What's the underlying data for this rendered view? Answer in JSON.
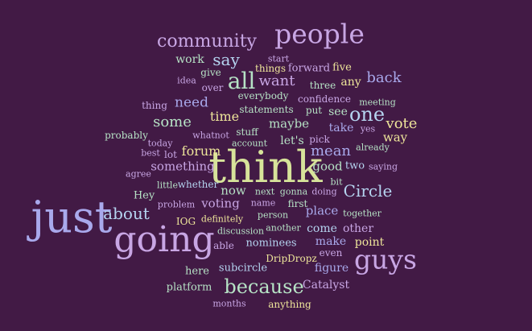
{
  "background": "#421A45",
  "palette": {
    "lavender": "#C8A6E4",
    "periwinkle": "#A9A9EC",
    "lightblue": "#B5D4F0",
    "yellowgreen": "#D7E39A",
    "yellow": "#EEE59A",
    "mint": "#B6E2C5"
  },
  "words": [
    {
      "text": "think",
      "color": "#D7E39A"
    },
    {
      "text": "going",
      "color": "#C8A6E4"
    },
    {
      "text": "just",
      "color": "#A9A9EC"
    },
    {
      "text": "people",
      "color": "#C8A6E4"
    },
    {
      "text": "guys",
      "color": "#C8A6E4"
    },
    {
      "text": "all",
      "color": "#B6E2C5"
    },
    {
      "text": "because",
      "color": "#B6E2C5"
    },
    {
      "text": "community",
      "color": "#C8A6E4"
    },
    {
      "text": "one",
      "color": "#B5D4F0"
    },
    {
      "text": "about",
      "color": "#B5D4F0"
    },
    {
      "text": "Circle",
      "color": "#B5D4F0"
    },
    {
      "text": "say",
      "color": "#B5D4F0"
    },
    {
      "text": "want",
      "color": "#C8A6E4"
    },
    {
      "text": "back",
      "color": "#A9A9EC"
    },
    {
      "text": "vote",
      "color": "#EEE59A"
    },
    {
      "text": "mean",
      "color": "#A9A9EC"
    },
    {
      "text": "some",
      "color": "#B6E2C5"
    },
    {
      "text": "need",
      "color": "#A9A9EC"
    },
    {
      "text": "time",
      "color": "#EEE59A"
    },
    {
      "text": "maybe",
      "color": "#B6E2C5"
    },
    {
      "text": "forum",
      "color": "#EEE59A"
    },
    {
      "text": "something",
      "color": "#C8A6E4"
    },
    {
      "text": "now",
      "color": "#B6E2C5"
    },
    {
      "text": "voting",
      "color": "#C8A6E4"
    },
    {
      "text": "place",
      "color": "#A9A9EC"
    },
    {
      "text": "way",
      "color": "#EEE59A"
    },
    {
      "text": "good",
      "color": "#B6E2C5"
    },
    {
      "text": "work",
      "color": "#B6E2C5"
    },
    {
      "text": "any",
      "color": "#EEE59A"
    },
    {
      "text": "see",
      "color": "#B6E2C5"
    },
    {
      "text": "take",
      "color": "#A9A9EC"
    },
    {
      "text": "let's",
      "color": "#B6E2C5"
    },
    {
      "text": "five",
      "color": "#EEE59A"
    },
    {
      "text": "forward",
      "color": "#C8A6E4"
    },
    {
      "text": "make",
      "color": "#A9A9EC"
    },
    {
      "text": "point",
      "color": "#EEE59A"
    },
    {
      "text": "other",
      "color": "#C8A6E4"
    },
    {
      "text": "come",
      "color": "#B5D4F0"
    },
    {
      "text": "figure",
      "color": "#A9A9EC"
    },
    {
      "text": "Catalyst",
      "color": "#C8A6E4"
    },
    {
      "text": "platform",
      "color": "#B6E2C5"
    },
    {
      "text": "subcircle",
      "color": "#B5D4F0"
    },
    {
      "text": "here",
      "color": "#B6E2C5"
    },
    {
      "text": "nominees",
      "color": "#B5D4F0"
    },
    {
      "text": "Hey",
      "color": "#B6E2C5"
    },
    {
      "text": "two",
      "color": "#B5D4F0"
    },
    {
      "text": "pick",
      "color": "#C8A6E4"
    },
    {
      "text": "three",
      "color": "#B6E2C5"
    },
    {
      "text": "put",
      "color": "#B6E2C5"
    },
    {
      "text": "stuff",
      "color": "#B6E2C5"
    },
    {
      "text": "statements",
      "color": "#B6E2C5"
    },
    {
      "text": "everybody",
      "color": "#B6E2C5"
    },
    {
      "text": "confidence",
      "color": "#C8A6E4"
    },
    {
      "text": "meeting",
      "color": "#B6E2C5"
    },
    {
      "text": "things",
      "color": "#EEE59A"
    },
    {
      "text": "start",
      "color": "#C8A6E4"
    },
    {
      "text": "give",
      "color": "#B6E2C5"
    },
    {
      "text": "over",
      "color": "#C8A6E4"
    },
    {
      "text": "idea",
      "color": "#C8A6E4"
    },
    {
      "text": "thing",
      "color": "#C8A6E4"
    },
    {
      "text": "probably",
      "color": "#B6E2C5"
    },
    {
      "text": "today",
      "color": "#C8A6E4"
    },
    {
      "text": "whatnot",
      "color": "#C8A6E4"
    },
    {
      "text": "account",
      "color": "#B6E2C5"
    },
    {
      "text": "best",
      "color": "#C8A6E4"
    },
    {
      "text": "lot",
      "color": "#C8A6E4"
    },
    {
      "text": "yes",
      "color": "#C8A6E4"
    },
    {
      "text": "already",
      "color": "#B6E2C5"
    },
    {
      "text": "saying",
      "color": "#C8A6E4"
    },
    {
      "text": "agree",
      "color": "#C8A6E4"
    },
    {
      "text": "little",
      "color": "#B6E2C5"
    },
    {
      "text": "whether",
      "color": "#B5D4F0"
    },
    {
      "text": "next",
      "color": "#B6E2C5"
    },
    {
      "text": "gonna",
      "color": "#B6E2C5"
    },
    {
      "text": "doing",
      "color": "#C8A6E4"
    },
    {
      "text": "bit",
      "color": "#B6E2C5"
    },
    {
      "text": "problem",
      "color": "#C8A6E4"
    },
    {
      "text": "name",
      "color": "#C8A6E4"
    },
    {
      "text": "first",
      "color": "#B6E2C5"
    },
    {
      "text": "person",
      "color": "#B6E2C5"
    },
    {
      "text": "together",
      "color": "#B6E2C5"
    },
    {
      "text": "IOG",
      "color": "#EEE59A"
    },
    {
      "text": "definitely",
      "color": "#EEE59A"
    },
    {
      "text": "discussion",
      "color": "#B6E2C5"
    },
    {
      "text": "another",
      "color": "#B6E2C5"
    },
    {
      "text": "able",
      "color": "#C8A6E4"
    },
    {
      "text": "DripDropz",
      "color": "#EEE59A"
    },
    {
      "text": "even",
      "color": "#C8A6E4"
    },
    {
      "text": "months",
      "color": "#C8A6E4"
    },
    {
      "text": "anything",
      "color": "#EEE59A"
    }
  ]
}
